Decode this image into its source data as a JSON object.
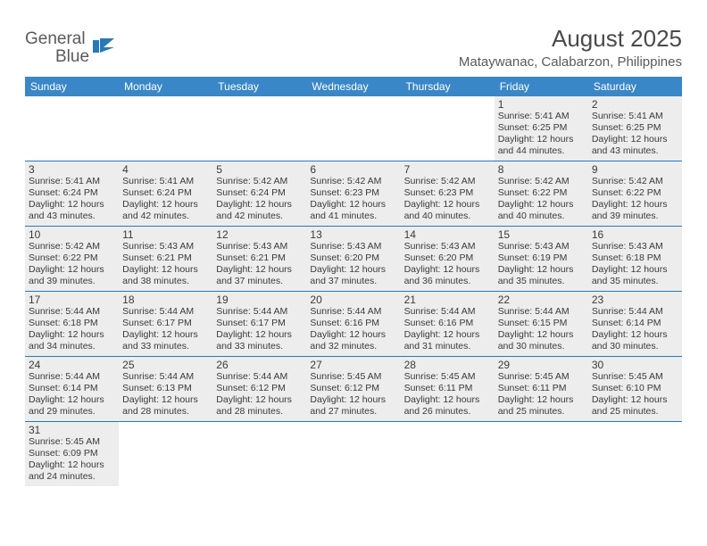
{
  "logo": {
    "text1": "General",
    "text2": "Blue"
  },
  "title": "August 2025",
  "location": "Mataywanac, Calabarzon, Philippines",
  "colors": {
    "header_bg": "#3a87c8",
    "header_text": "#ffffff",
    "divider": "#2978b9",
    "shaded_bg": "#ededed",
    "text": "#3a3a3a",
    "logo_gray": "#5a5a5a",
    "logo_blue": "#2978b9"
  },
  "days_of_week": [
    "Sunday",
    "Monday",
    "Tuesday",
    "Wednesday",
    "Thursday",
    "Friday",
    "Saturday"
  ],
  "weeks": [
    [
      null,
      null,
      null,
      null,
      null,
      {
        "n": "1",
        "sr": "Sunrise: 5:41 AM",
        "ss": "Sunset: 6:25 PM",
        "d1": "Daylight: 12 hours",
        "d2": "and 44 minutes."
      },
      {
        "n": "2",
        "sr": "Sunrise: 5:41 AM",
        "ss": "Sunset: 6:25 PM",
        "d1": "Daylight: 12 hours",
        "d2": "and 43 minutes."
      }
    ],
    [
      {
        "n": "3",
        "sr": "Sunrise: 5:41 AM",
        "ss": "Sunset: 6:24 PM",
        "d1": "Daylight: 12 hours",
        "d2": "and 43 minutes."
      },
      {
        "n": "4",
        "sr": "Sunrise: 5:41 AM",
        "ss": "Sunset: 6:24 PM",
        "d1": "Daylight: 12 hours",
        "d2": "and 42 minutes."
      },
      {
        "n": "5",
        "sr": "Sunrise: 5:42 AM",
        "ss": "Sunset: 6:24 PM",
        "d1": "Daylight: 12 hours",
        "d2": "and 42 minutes."
      },
      {
        "n": "6",
        "sr": "Sunrise: 5:42 AM",
        "ss": "Sunset: 6:23 PM",
        "d1": "Daylight: 12 hours",
        "d2": "and 41 minutes."
      },
      {
        "n": "7",
        "sr": "Sunrise: 5:42 AM",
        "ss": "Sunset: 6:23 PM",
        "d1": "Daylight: 12 hours",
        "d2": "and 40 minutes."
      },
      {
        "n": "8",
        "sr": "Sunrise: 5:42 AM",
        "ss": "Sunset: 6:22 PM",
        "d1": "Daylight: 12 hours",
        "d2": "and 40 minutes."
      },
      {
        "n": "9",
        "sr": "Sunrise: 5:42 AM",
        "ss": "Sunset: 6:22 PM",
        "d1": "Daylight: 12 hours",
        "d2": "and 39 minutes."
      }
    ],
    [
      {
        "n": "10",
        "sr": "Sunrise: 5:42 AM",
        "ss": "Sunset: 6:22 PM",
        "d1": "Daylight: 12 hours",
        "d2": "and 39 minutes."
      },
      {
        "n": "11",
        "sr": "Sunrise: 5:43 AM",
        "ss": "Sunset: 6:21 PM",
        "d1": "Daylight: 12 hours",
        "d2": "and 38 minutes."
      },
      {
        "n": "12",
        "sr": "Sunrise: 5:43 AM",
        "ss": "Sunset: 6:21 PM",
        "d1": "Daylight: 12 hours",
        "d2": "and 37 minutes."
      },
      {
        "n": "13",
        "sr": "Sunrise: 5:43 AM",
        "ss": "Sunset: 6:20 PM",
        "d1": "Daylight: 12 hours",
        "d2": "and 37 minutes."
      },
      {
        "n": "14",
        "sr": "Sunrise: 5:43 AM",
        "ss": "Sunset: 6:20 PM",
        "d1": "Daylight: 12 hours",
        "d2": "and 36 minutes."
      },
      {
        "n": "15",
        "sr": "Sunrise: 5:43 AM",
        "ss": "Sunset: 6:19 PM",
        "d1": "Daylight: 12 hours",
        "d2": "and 35 minutes."
      },
      {
        "n": "16",
        "sr": "Sunrise: 5:43 AM",
        "ss": "Sunset: 6:18 PM",
        "d1": "Daylight: 12 hours",
        "d2": "and 35 minutes."
      }
    ],
    [
      {
        "n": "17",
        "sr": "Sunrise: 5:44 AM",
        "ss": "Sunset: 6:18 PM",
        "d1": "Daylight: 12 hours",
        "d2": "and 34 minutes."
      },
      {
        "n": "18",
        "sr": "Sunrise: 5:44 AM",
        "ss": "Sunset: 6:17 PM",
        "d1": "Daylight: 12 hours",
        "d2": "and 33 minutes."
      },
      {
        "n": "19",
        "sr": "Sunrise: 5:44 AM",
        "ss": "Sunset: 6:17 PM",
        "d1": "Daylight: 12 hours",
        "d2": "and 33 minutes."
      },
      {
        "n": "20",
        "sr": "Sunrise: 5:44 AM",
        "ss": "Sunset: 6:16 PM",
        "d1": "Daylight: 12 hours",
        "d2": "and 32 minutes."
      },
      {
        "n": "21",
        "sr": "Sunrise: 5:44 AM",
        "ss": "Sunset: 6:16 PM",
        "d1": "Daylight: 12 hours",
        "d2": "and 31 minutes."
      },
      {
        "n": "22",
        "sr": "Sunrise: 5:44 AM",
        "ss": "Sunset: 6:15 PM",
        "d1": "Daylight: 12 hours",
        "d2": "and 30 minutes."
      },
      {
        "n": "23",
        "sr": "Sunrise: 5:44 AM",
        "ss": "Sunset: 6:14 PM",
        "d1": "Daylight: 12 hours",
        "d2": "and 30 minutes."
      }
    ],
    [
      {
        "n": "24",
        "sr": "Sunrise: 5:44 AM",
        "ss": "Sunset: 6:14 PM",
        "d1": "Daylight: 12 hours",
        "d2": "and 29 minutes."
      },
      {
        "n": "25",
        "sr": "Sunrise: 5:44 AM",
        "ss": "Sunset: 6:13 PM",
        "d1": "Daylight: 12 hours",
        "d2": "and 28 minutes."
      },
      {
        "n": "26",
        "sr": "Sunrise: 5:44 AM",
        "ss": "Sunset: 6:12 PM",
        "d1": "Daylight: 12 hours",
        "d2": "and 28 minutes."
      },
      {
        "n": "27",
        "sr": "Sunrise: 5:45 AM",
        "ss": "Sunset: 6:12 PM",
        "d1": "Daylight: 12 hours",
        "d2": "and 27 minutes."
      },
      {
        "n": "28",
        "sr": "Sunrise: 5:45 AM",
        "ss": "Sunset: 6:11 PM",
        "d1": "Daylight: 12 hours",
        "d2": "and 26 minutes."
      },
      {
        "n": "29",
        "sr": "Sunrise: 5:45 AM",
        "ss": "Sunset: 6:11 PM",
        "d1": "Daylight: 12 hours",
        "d2": "and 25 minutes."
      },
      {
        "n": "30",
        "sr": "Sunrise: 5:45 AM",
        "ss": "Sunset: 6:10 PM",
        "d1": "Daylight: 12 hours",
        "d2": "and 25 minutes."
      }
    ],
    [
      {
        "n": "31",
        "sr": "Sunrise: 5:45 AM",
        "ss": "Sunset: 6:09 PM",
        "d1": "Daylight: 12 hours",
        "d2": "and 24 minutes."
      },
      null,
      null,
      null,
      null,
      null,
      null
    ]
  ]
}
